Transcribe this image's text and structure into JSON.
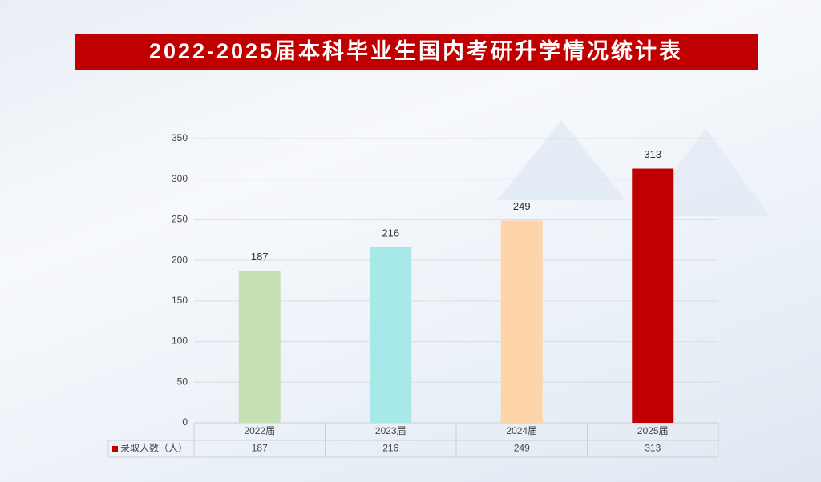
{
  "chart_data": {
    "type": "bar",
    "title": "2022-2025届本科毕业生国内考研升学情况统计表",
    "categories": [
      "2022届",
      "2023届",
      "2024届",
      "2025届"
    ],
    "series": [
      {
        "name": "录取人数（人）",
        "color": "#c00000",
        "colors": [
          "#c5e0b4",
          "#a6e9e8",
          "#fdd5a9",
          "#c00000"
        ],
        "values": [
          187,
          216,
          249,
          313
        ]
      }
    ],
    "ylim": [
      0,
      350
    ],
    "yticks": [
      0,
      50,
      100,
      150,
      200,
      250,
      300,
      350
    ],
    "grid": true
  }
}
